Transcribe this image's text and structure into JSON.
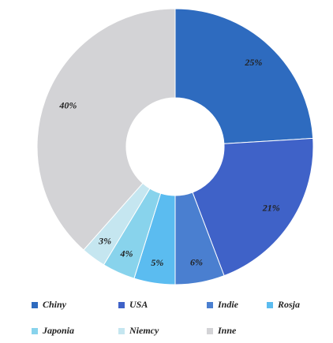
{
  "chart_data": {
    "type": "donut",
    "categories": [
      "Chiny",
      "USA",
      "Indie",
      "Rosja",
      "Japonia",
      "Niemcy",
      "Inne"
    ],
    "values": [
      25,
      21,
      6,
      5,
      4,
      3,
      40
    ],
    "value_labels": [
      "25%",
      "21%",
      "6%",
      "5%",
      "4%",
      "3%",
      "40%"
    ],
    "colors": [
      "#2e6bbf",
      "#3f62c8",
      "#4a7fd0",
      "#5bbcf0",
      "#88d3ec",
      "#c5e6f0",
      "#d3d3d6"
    ],
    "legend": "bottom"
  }
}
